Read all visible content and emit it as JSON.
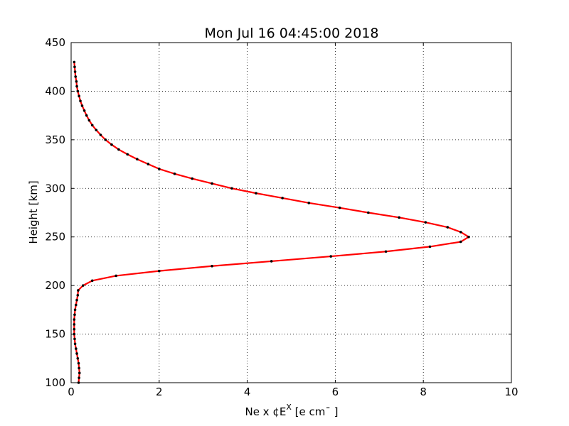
{
  "chart_data": {
    "type": "line",
    "title": "Mon Jul 16 04:45:00 2018",
    "xlabel": "Ne x ¢E",
    "xlabel_sup": "X",
    "xlabel_units": " [e cm¯ ]",
    "ylabel": "Height [km]",
    "xlim": [
      0,
      10
    ],
    "ylim": [
      100,
      450
    ],
    "xticks": [
      "0",
      "2",
      "4",
      "6",
      "8",
      "10"
    ],
    "yticks": [
      "100",
      "150",
      "200",
      "250",
      "300",
      "350",
      "400",
      "450"
    ],
    "grid": true,
    "colors": {
      "line": "#ff0000",
      "marker": "#000000"
    },
    "series": [
      {
        "x": [
          0.17,
          0.18,
          0.19,
          0.18,
          0.17,
          0.15,
          0.13,
          0.11,
          0.09,
          0.08,
          0.07,
          0.07,
          0.07,
          0.07,
          0.08,
          0.09,
          0.11,
          0.13,
          0.15,
          0.16,
          0.27,
          0.48,
          1.02,
          2.0,
          3.2,
          4.55,
          5.9,
          7.15,
          8.15,
          8.85,
          9.03,
          8.85,
          8.55,
          8.05,
          7.45,
          6.75,
          6.1,
          5.4,
          4.8,
          4.2,
          3.65,
          3.2,
          2.75,
          2.35,
          2.0,
          1.75,
          1.5,
          1.28,
          1.08,
          0.92,
          0.78,
          0.67,
          0.57,
          0.48,
          0.41,
          0.35,
          0.3,
          0.25,
          0.21,
          0.18,
          0.15,
          0.13,
          0.12,
          0.1,
          0.09,
          0.08,
          0.07
        ],
        "y": [
          100,
          105,
          110,
          115,
          120,
          125,
          130,
          135,
          140,
          145,
          150,
          155,
          160,
          165,
          170,
          175,
          180,
          185,
          190,
          195,
          200,
          205,
          210,
          215,
          220,
          225,
          230,
          235,
          240,
          245,
          250,
          255,
          260,
          265,
          270,
          275,
          280,
          285,
          290,
          295,
          300,
          305,
          310,
          315,
          320,
          325,
          330,
          335,
          340,
          345,
          350,
          355,
          360,
          365,
          370,
          375,
          380,
          385,
          390,
          395,
          400,
          405,
          410,
          415,
          420,
          425,
          430
        ]
      }
    ]
  }
}
